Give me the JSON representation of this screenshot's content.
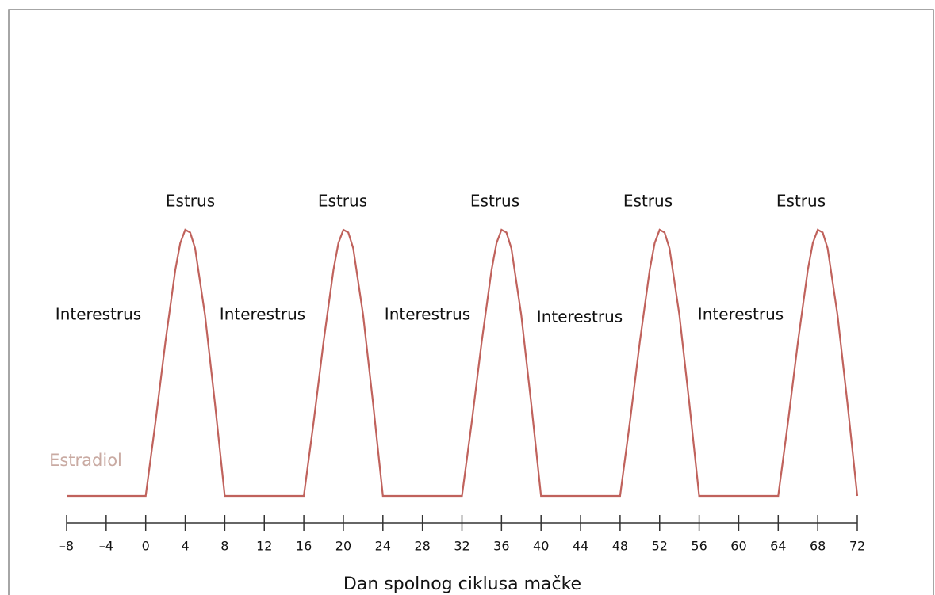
{
  "chart_data": {
    "type": "line",
    "y_label": "Estradiol",
    "x_label": "Dan spolnog ciklusa mačke",
    "annotations": [
      "Estrus",
      "Estrus",
      "Estrus",
      "Estrus",
      "Estrus",
      "Interestrus",
      "Interestrus",
      "Interestrus",
      "Interestrus",
      "Interestrus"
    ],
    "series": [
      {
        "name": "Estradiol",
        "color": "#c0625c",
        "x": [
          -8,
          0,
          1,
          2,
          3,
          3.5,
          4,
          4.5,
          5,
          6,
          7,
          8,
          16,
          17,
          18,
          19,
          19.5,
          20,
          20.5,
          21,
          22,
          23,
          24,
          32,
          33,
          34,
          35,
          35.5,
          36,
          36.5,
          37,
          38,
          39,
          40,
          48,
          49,
          50,
          51,
          51.5,
          52,
          52.5,
          53,
          54,
          55,
          56,
          64,
          65,
          66,
          67,
          67.5,
          68,
          68.5,
          69,
          70,
          71,
          72
        ],
        "values": [
          0,
          0,
          28,
          58,
          85,
          95,
          100,
          99,
          93,
          68,
          35,
          0,
          0,
          28,
          58,
          85,
          95,
          100,
          99,
          93,
          68,
          35,
          0,
          0,
          28,
          58,
          85,
          95,
          100,
          99,
          93,
          68,
          35,
          0,
          0,
          28,
          58,
          85,
          95,
          100,
          99,
          93,
          68,
          35,
          0,
          0,
          28,
          58,
          85,
          95,
          100,
          99,
          93,
          68,
          35,
          0
        ]
      }
    ],
    "xlim": [
      -8,
      72
    ],
    "ylim": [
      0,
      100
    ],
    "xticks": [
      {
        "value": -8,
        "label": "–8"
      },
      {
        "value": -4,
        "label": "–4"
      },
      0,
      4,
      8,
      12,
      16,
      20,
      24,
      28,
      32,
      36,
      40,
      44,
      48,
      52,
      56,
      60,
      64,
      68,
      72
    ]
  }
}
